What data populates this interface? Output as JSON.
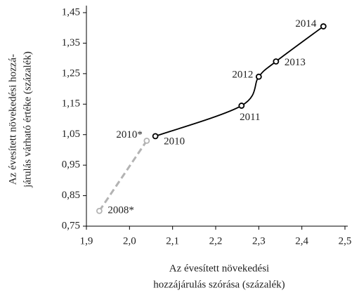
{
  "chart_data": {
    "type": "line",
    "ylabel": [
      "Az évesített növekedési hozzá-",
      "járulás várható értéke (százalék)"
    ],
    "xlabel": [
      "Az évesített növekedési",
      "hozzájárulás szórása (százalék)"
    ],
    "xlim": [
      1.9,
      2.5
    ],
    "xticks": [
      {
        "value": 1.9,
        "label": "1,9"
      },
      {
        "value": 2.0,
        "label": "2,0"
      },
      {
        "value": 2.1,
        "label": "2,1"
      },
      {
        "value": 2.2,
        "label": "2,2"
      },
      {
        "value": 2.3,
        "label": "2,3"
      },
      {
        "value": 2.4,
        "label": "2,4"
      },
      {
        "value": 2.5,
        "label": "2,5"
      }
    ],
    "ylim": [
      0.75,
      1.45
    ],
    "yticks": [
      {
        "value": 0.75,
        "label": "0,75"
      },
      {
        "value": 0.85,
        "label": "0,85"
      },
      {
        "value": 0.95,
        "label": "0,95"
      },
      {
        "value": 1.05,
        "label": "1,05"
      },
      {
        "value": 1.15,
        "label": "1,15"
      },
      {
        "value": 1.25,
        "label": "1,25"
      },
      {
        "value": 1.35,
        "label": "1,35"
      },
      {
        "value": 1.45,
        "label": "1,45"
      }
    ],
    "series": [
      {
        "color": "#000000",
        "dashed": false,
        "smooth": true,
        "labels": [
          "2010",
          "2011",
          "2012",
          "2013",
          "2014"
        ],
        "x": [
          2.06,
          2.26,
          2.3,
          2.34,
          2.45
        ],
        "values": [
          1.045,
          1.145,
          1.24,
          1.29,
          1.405
        ]
      },
      {
        "color": "#b3b3b3",
        "dashed": true,
        "smooth": false,
        "labels": [
          "2008*",
          "2010*"
        ],
        "x": [
          1.93,
          2.04
        ],
        "values": [
          0.8,
          1.03
        ]
      }
    ]
  }
}
